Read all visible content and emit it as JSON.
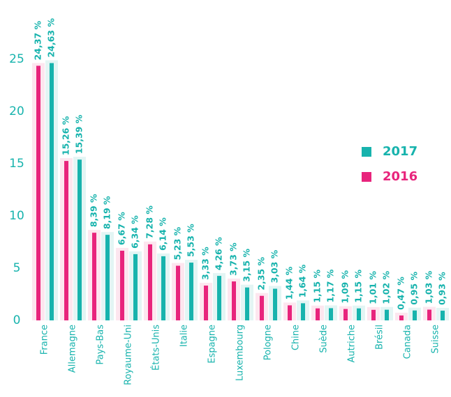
{
  "chart_data": {
    "type": "bar",
    "categories": [
      "France",
      "Allemagne",
      "Pays-Bas",
      "Royaume-Uni",
      "États-Unis",
      "Italie",
      "Espagne",
      "Luxembourg",
      "Pologne",
      "Chine",
      "Suède",
      "Autriche",
      "Brésil",
      "Canada",
      "Suisse"
    ],
    "series": [
      {
        "name": "2016",
        "color": "#e8247c",
        "values": [
          24.37,
          15.26,
          8.39,
          6.67,
          7.28,
          5.23,
          3.33,
          3.73,
          2.35,
          1.44,
          1.15,
          1.09,
          1.01,
          0.47,
          1.03
        ],
        "value_labels": [
          "24,37 %",
          "15,26 %",
          "8,39 %",
          "6,67 %",
          "7,28 %",
          "5,23 %",
          "3,33 %",
          "3,73 %",
          "2,35 %",
          "1,44 %",
          "1,15 %",
          "1,09 %",
          "1,01 %",
          "0,47 %",
          "1,03 %"
        ]
      },
      {
        "name": "2017",
        "color": "#17b3ad",
        "values": [
          24.63,
          15.39,
          8.19,
          6.34,
          6.14,
          5.53,
          4.26,
          3.15,
          3.03,
          1.64,
          1.17,
          1.15,
          1.02,
          0.95,
          0.93
        ],
        "value_labels": [
          "24,63 %",
          "15,39 %",
          "8,19 %",
          "6,34 %",
          "6,14 %",
          "5,53 %",
          "4,26 %",
          "3,15 %",
          "3,03 %",
          "1,64 %",
          "1,17 %",
          "1,15 %",
          "1,02 %",
          "0,95 %",
          "0,93 %"
        ]
      }
    ],
    "ylim": [
      0,
      25
    ],
    "yticks": [
      0,
      5,
      10,
      15,
      20,
      25
    ],
    "legend": "right"
  }
}
